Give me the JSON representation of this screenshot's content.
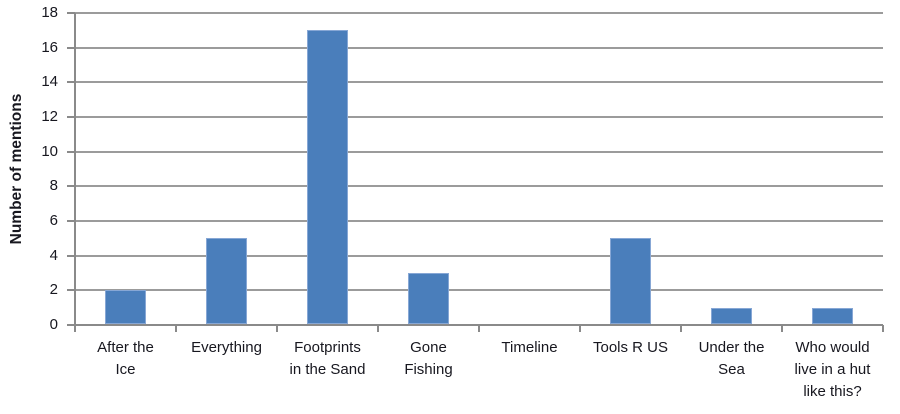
{
  "chart_data": {
    "type": "bar",
    "title": "",
    "categories": [
      "After the Ice",
      "Everything",
      "Footprints in the Sand",
      "Gone Fishing",
      "Timeline",
      "Tools R US",
      "Under the Sea",
      "Who would live in a hut like this?"
    ],
    "category_lines": [
      [
        "After the",
        "Ice"
      ],
      [
        "Everything"
      ],
      [
        "Footprints",
        "in the Sand"
      ],
      [
        "Gone",
        "Fishing"
      ],
      [
        "Timeline"
      ],
      [
        "Tools R US"
      ],
      [
        "Under the",
        "Sea"
      ],
      [
        "Who would",
        "live in a hut",
        "like this?"
      ]
    ],
    "values": [
      2,
      5,
      17,
      3,
      0,
      5,
      1,
      1
    ],
    "xlabel": "",
    "ylabel": "Number of mentions",
    "ylim": [
      0,
      18
    ],
    "yticks": [
      0,
      2,
      4,
      6,
      8,
      10,
      12,
      14,
      16,
      18
    ],
    "grid": true,
    "legend": false,
    "colors": {
      "bar_fill": "#4a7ebb",
      "bar_border": "#87a7d5",
      "gridline": "#9b9b9b",
      "axis": "#8a8a8a",
      "text": "#17171f"
    }
  }
}
